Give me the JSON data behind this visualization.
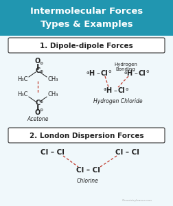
{
  "title_line1": "Intermolecular Forces",
  "title_line2": "Types & Examples",
  "title_bg": "#2196b0",
  "title_text_color": "white",
  "bg_color": "#f0f8fb",
  "section1_label": "1. Dipole-dipole Forces",
  "section2_label": "2. London Dispersion Forces",
  "box_color": "white",
  "box_edge_color": "#333333",
  "text_color": "#222222",
  "dashed_color": "#c0392b",
  "label_acetone": "Acetone",
  "label_hcl": "Hydrogen Chloride",
  "label_chlorine": "Chlorine",
  "label_hbonding_1": "Hydrogen",
  "label_hbonding_2": "Bonding",
  "watermark": "Chemistryleaner.com"
}
